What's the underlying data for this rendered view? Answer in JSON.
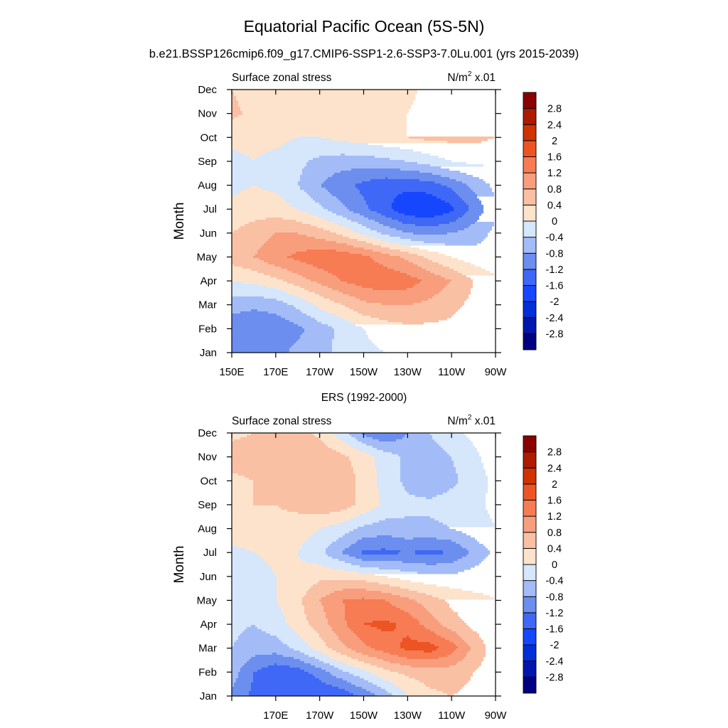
{
  "figure": {
    "title": "Equatorial Pacific Ocean (5S-5N)",
    "subtitle": "b.e21.BSSP126cmip6.f09_g17.CMIP6-SSP1-2.6-SSP3-7.0Lu.001 (yrs 2015-2039)",
    "panel2_title": "ERS (1992-2000)"
  },
  "chart_data": [
    {
      "type": "heatmap",
      "left_label": "Surface zonal stress",
      "units_base": "N/m",
      "units_sup": "2",
      "units_suffix": " x.01",
      "ylabel": "Month",
      "x_ticks": [
        150,
        170,
        190,
        210,
        230,
        250,
        270
      ],
      "x_tick_labels": [
        "150E",
        "170E",
        "170W",
        "150W",
        "130W",
        "110W",
        "90W"
      ],
      "xlim": [
        150,
        270
      ],
      "y_ticks": [
        "Jan",
        "Feb",
        "Mar",
        "Apr",
        "May",
        "Jun",
        "Jul",
        "Aug",
        "Sep",
        "Oct",
        "Nov",
        "Dec"
      ],
      "ylim": [
        1,
        12
      ],
      "levels": [
        -2.8,
        -2.4,
        -2,
        -1.6,
        -1.2,
        -0.8,
        -0.4,
        0,
        0.4,
        0.8,
        1.2,
        1.6,
        2,
        2.4,
        2.8
      ],
      "level_labels": [
        "-2.8",
        "-2.4",
        "-2",
        "-1.6",
        "-1.2",
        "-0.8",
        "-0.4",
        "0",
        "0.4",
        "0.8",
        "1.2",
        "1.6",
        "2",
        "2.4",
        "2.8"
      ],
      "colors": [
        "#000080",
        "#0016ac",
        "#002ed9",
        "#1746ff",
        "#3e68f5",
        "#6b8eef",
        "#a3bcf8",
        "#d6e6fb",
        "#fde3cc",
        "#fac0a4",
        "#f89e7d",
        "#f77c54",
        "#ed5424",
        "#d03200",
        "#ae1a00",
        "#8b0000"
      ],
      "x": [
        150,
        160,
        170,
        180,
        190,
        200,
        210,
        220,
        230,
        240,
        250,
        260,
        270
      ],
      "y": [
        1,
        2,
        3,
        4,
        5,
        6,
        7,
        8,
        9,
        10,
        11,
        12
      ],
      "z": [
        [
          -0.9,
          -1.0,
          -0.9,
          -0.7,
          -0.5,
          -0.3,
          -0.1,
          0.0,
          0.1,
          0.2,
          0.2,
          0.2,
          0.1
        ],
        [
          -1.1,
          -1.2,
          -1.1,
          -0.9,
          -0.6,
          -0.3,
          0.0,
          0.2,
          0.3,
          0.3,
          0.3,
          0.2,
          0.1
        ],
        [
          -0.6,
          -0.7,
          -0.6,
          -0.3,
          0.1,
          0.4,
          0.7,
          0.8,
          0.8,
          0.7,
          0.5,
          0.3,
          0.1
        ],
        [
          0.0,
          0.1,
          0.3,
          0.6,
          0.9,
          1.2,
          1.4,
          1.5,
          1.4,
          1.1,
          0.8,
          0.4,
          0.1
        ],
        [
          0.6,
          0.8,
          1.1,
          1.3,
          1.5,
          1.5,
          1.3,
          1.0,
          0.7,
          0.3,
          0.0,
          -0.2,
          -0.3
        ],
        [
          0.4,
          0.6,
          0.8,
          0.8,
          0.6,
          0.3,
          -0.1,
          -0.5,
          -0.8,
          -0.9,
          -0.8,
          -0.6,
          -0.3
        ],
        [
          0.1,
          0.2,
          0.2,
          0.0,
          -0.3,
          -0.7,
          -1.1,
          -1.5,
          -1.9,
          -2.0,
          -1.7,
          -1.1,
          -0.5
        ],
        [
          -0.1,
          0.0,
          -0.1,
          -0.4,
          -0.8,
          -1.1,
          -1.3,
          -1.5,
          -1.5,
          -1.4,
          -1.1,
          -0.7,
          -0.3
        ],
        [
          -0.1,
          0.0,
          -0.1,
          -0.3,
          -0.5,
          -0.6,
          -0.6,
          -0.5,
          -0.4,
          -0.2,
          0.0,
          0.1,
          0.1
        ],
        [
          0.1,
          0.1,
          0.1,
          0.0,
          0.0,
          0.1,
          0.2,
          0.3,
          0.4,
          0.5,
          0.5,
          0.5,
          0.4
        ],
        [
          0.5,
          0.3,
          0.1,
          0.1,
          0.3,
          0.2,
          0.1,
          0.2,
          0.4,
          0.6,
          0.7,
          0.6,
          0.5
        ],
        [
          0.4,
          0.2,
          0.1,
          0.1,
          0.2,
          0.2,
          0.1,
          0.2,
          0.3,
          0.5,
          0.6,
          0.6,
          0.5
        ]
      ]
    },
    {
      "type": "heatmap",
      "left_label": "Surface zonal stress",
      "units_base": "N/m",
      "units_sup": "2",
      "units_suffix": " x.01",
      "ylabel": "Month",
      "x_ticks": [
        170,
        190,
        210,
        230,
        250,
        270
      ],
      "x_tick_labels": [
        "170E",
        "170W",
        "150W",
        "130W",
        "110W",
        "90W"
      ],
      "minor_x_ticks": [
        150
      ],
      "xlim": [
        150,
        270
      ],
      "y_ticks": [
        "Jan",
        "Feb",
        "Mar",
        "Apr",
        "May",
        "Jun",
        "Jul",
        "Aug",
        "Sep",
        "Oct",
        "Nov",
        "Dec"
      ],
      "ylim": [
        1,
        12
      ],
      "levels": [
        -2.8,
        -2.4,
        -2,
        -1.6,
        -1.2,
        -0.8,
        -0.4,
        0,
        0.4,
        0.8,
        1.2,
        1.6,
        2,
        2.4,
        2.8
      ],
      "level_labels": [
        "-2.8",
        "-2.4",
        "-2",
        "-1.6",
        "-1.2",
        "-0.8",
        "-0.4",
        "0",
        "0.4",
        "0.8",
        "1.2",
        "1.6",
        "2",
        "2.4",
        "2.8"
      ],
      "colors": [
        "#000080",
        "#0016ac",
        "#002ed9",
        "#1746ff",
        "#3e68f5",
        "#6b8eef",
        "#a3bcf8",
        "#d6e6fb",
        "#fde3cc",
        "#fac0a4",
        "#f89e7d",
        "#f77c54",
        "#ed5424",
        "#d03200",
        "#ae1a00",
        "#8b0000"
      ],
      "x": [
        150,
        160,
        170,
        180,
        190,
        200,
        210,
        220,
        230,
        240,
        250,
        260,
        270
      ],
      "y": [
        1,
        2,
        3,
        4,
        5,
        6,
        7,
        8,
        9,
        10,
        11,
        12
      ],
      "z": [
        [
          -0.9,
          -1.3,
          -1.5,
          -1.6,
          -1.6,
          -1.5,
          -1.1,
          -0.6,
          0.0,
          0.3,
          0.4,
          0.3,
          0.1
        ],
        [
          -0.6,
          -1.2,
          -1.5,
          -1.4,
          -1.0,
          -0.5,
          -0.1,
          0.3,
          0.5,
          0.6,
          0.6,
          0.4,
          0.2
        ],
        [
          -0.4,
          -0.6,
          -0.6,
          -0.3,
          0.2,
          0.7,
          1.1,
          1.4,
          1.7,
          1.8,
          1.4,
          0.7,
          0.2
        ],
        [
          -0.3,
          -0.4,
          -0.2,
          0.2,
          0.6,
          1.1,
          1.6,
          1.7,
          1.5,
          1.0,
          0.6,
          0.3,
          0.1
        ],
        [
          -0.2,
          -0.3,
          0.0,
          0.3,
          0.8,
          1.2,
          1.3,
          1.2,
          0.9,
          0.6,
          0.3,
          0.1,
          0.0
        ],
        [
          -0.3,
          -0.2,
          0.0,
          0.1,
          0.3,
          0.3,
          0.2,
          0.0,
          -0.2,
          -0.3,
          -0.3,
          -0.2,
          -0.1
        ],
        [
          -0.1,
          0.0,
          0.1,
          0.0,
          -0.3,
          -0.8,
          -1.3,
          -1.3,
          -1.2,
          -1.3,
          -1.2,
          -0.7,
          -0.3
        ],
        [
          0.2,
          0.3,
          0.3,
          0.2,
          0.0,
          -0.2,
          -0.5,
          -0.6,
          -0.5,
          -0.5,
          -0.4,
          -0.2,
          0.0
        ],
        [
          0.2,
          0.4,
          0.4,
          0.5,
          0.7,
          0.6,
          0.3,
          -0.1,
          -0.3,
          -0.3,
          -0.2,
          -0.1,
          0.1
        ],
        [
          0.3,
          0.4,
          0.5,
          0.6,
          0.6,
          0.6,
          0.3,
          -0.2,
          -0.5,
          -0.7,
          -0.5,
          -0.2,
          0.1
        ],
        [
          0.6,
          0.6,
          0.6,
          0.8,
          0.7,
          0.5,
          0.2,
          -0.2,
          -0.5,
          -0.6,
          -0.4,
          -0.1,
          0.2
        ],
        [
          0.3,
          0.4,
          0.5,
          0.6,
          0.3,
          -0.2,
          -0.9,
          -1.2,
          -0.8,
          -0.4,
          -0.1,
          0.1,
          0.2
        ]
      ]
    }
  ]
}
